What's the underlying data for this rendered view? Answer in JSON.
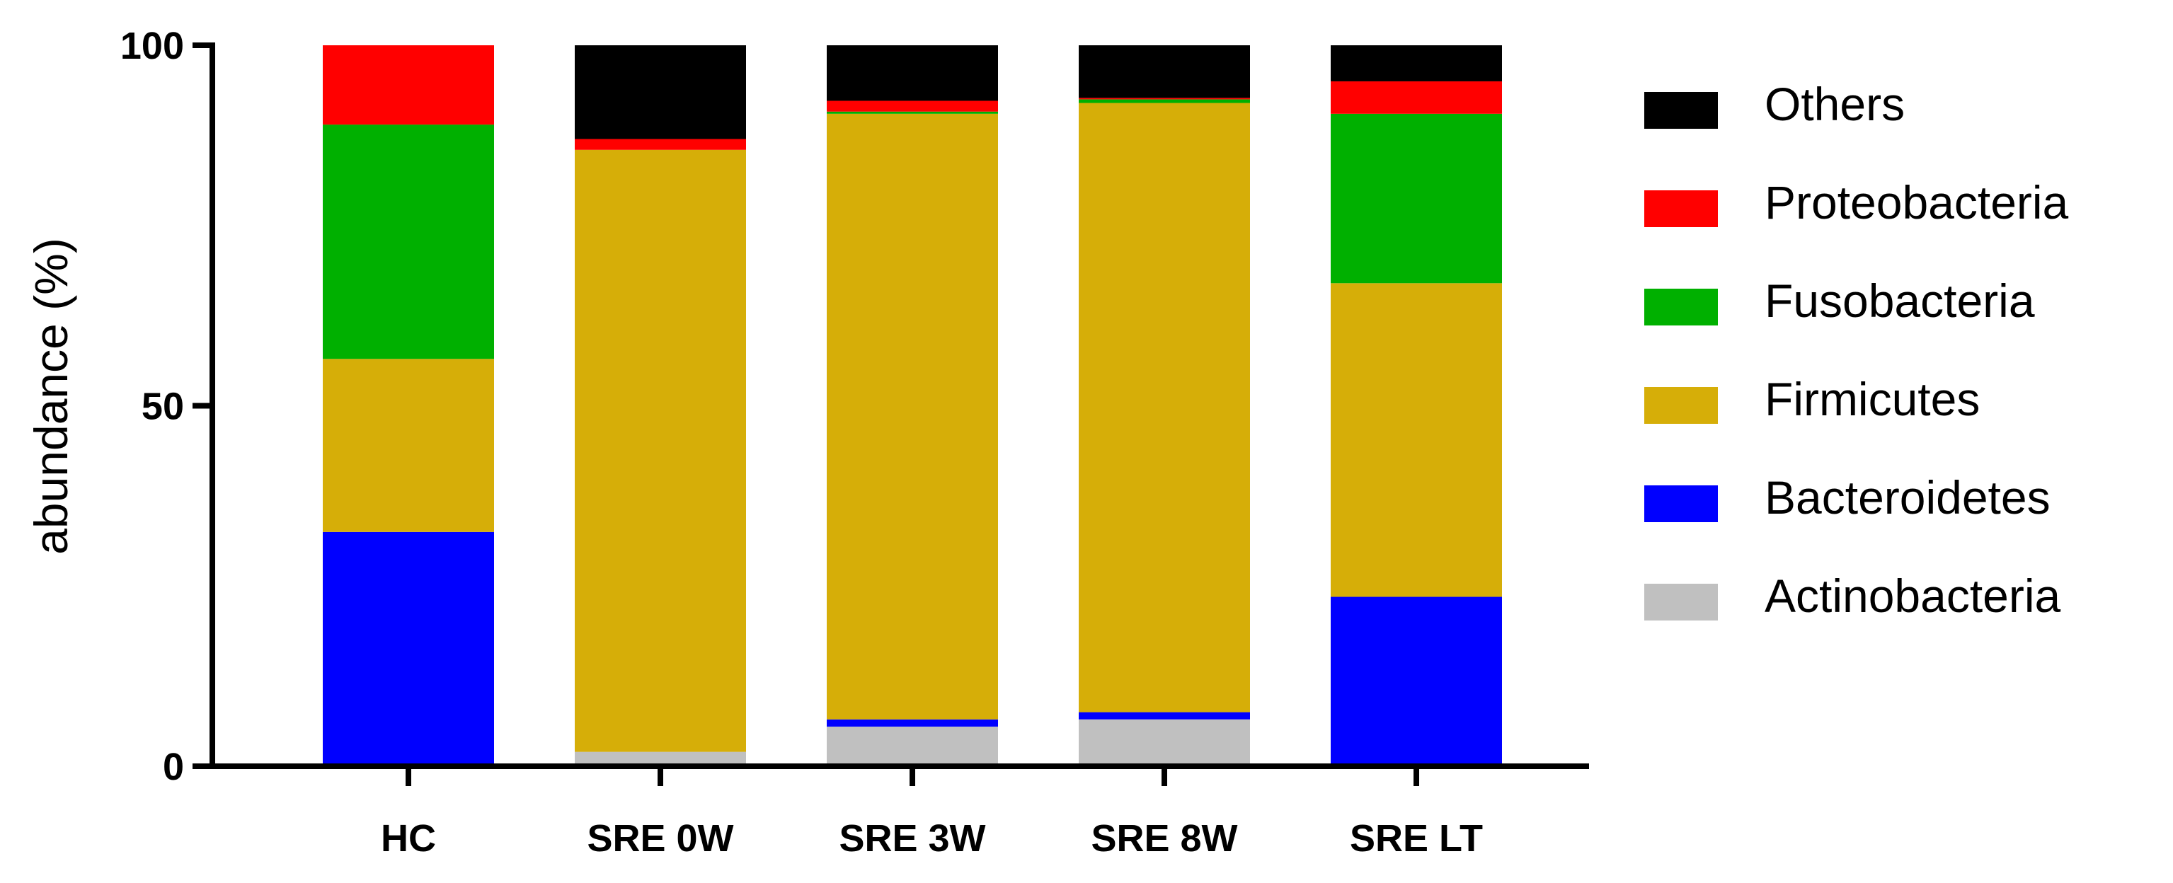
{
  "chart_data": {
    "type": "bar",
    "stacked": true,
    "title": "",
    "xlabel": "",
    "ylabel": "abundance (%)",
    "ylim": [
      0,
      100
    ],
    "yticks": [
      "0",
      "50",
      "100"
    ],
    "categories": [
      "HC",
      "SRE 0W",
      "SRE 3W",
      "SRE 8W",
      "SRE LT"
    ],
    "series": [
      {
        "name": "Actinobacteria",
        "color": "#c0c0c0",
        "values": [
          0,
          2,
          5.5,
          6.5,
          0
        ]
      },
      {
        "name": "Bacteroidetes",
        "color": "#0000ff",
        "values": [
          32.5,
          0,
          1,
          1,
          23.5
        ]
      },
      {
        "name": "Firmicutes",
        "color": "#d6ae08",
        "values": [
          24,
          83.5,
          84,
          84.5,
          43.5
        ]
      },
      {
        "name": "Fusobacteria",
        "color": "#00b000",
        "values": [
          32.5,
          0,
          0.3,
          0.5,
          23.5
        ]
      },
      {
        "name": "Proteobacteria",
        "color": "#ff0000",
        "values": [
          11,
          1.5,
          1.5,
          0.2,
          4.5
        ]
      },
      {
        "name": "Others",
        "color": "#000000",
        "values": [
          0,
          13,
          7.7,
          7.3,
          5
        ]
      }
    ],
    "legend": {
      "position": "right",
      "order": [
        "Others",
        "Proteobacteria",
        "Fusobacteria",
        "Firmicutes",
        "Bacteroidetes",
        "Actinobacteria"
      ]
    },
    "grid": false
  }
}
